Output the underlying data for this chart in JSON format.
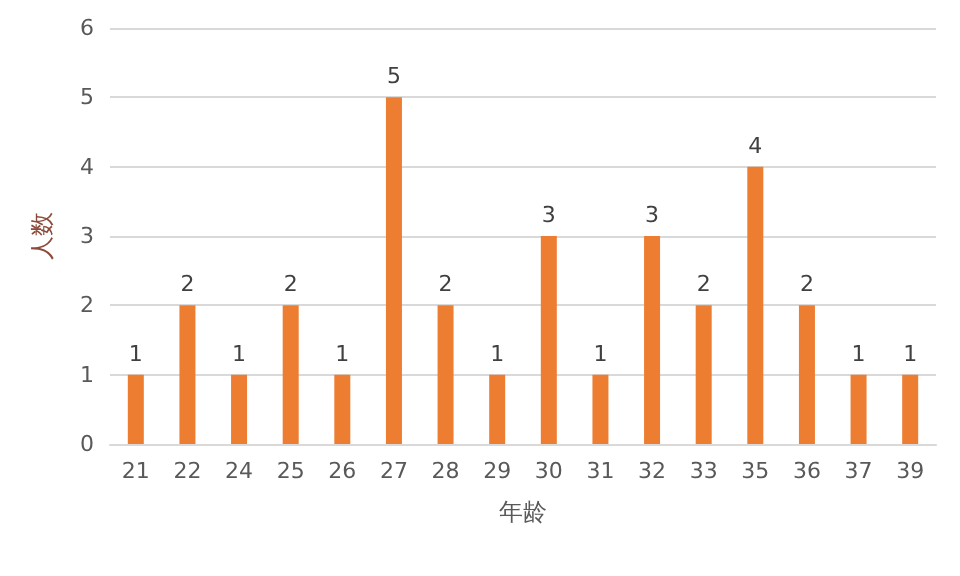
{
  "chart_data": {
    "type": "bar",
    "xlabel": "年龄",
    "ylabel": "人数",
    "categories": [
      "21",
      "22",
      "24",
      "25",
      "26",
      "27",
      "28",
      "29",
      "30",
      "31",
      "32",
      "33",
      "35",
      "36",
      "37",
      "39"
    ],
    "values": [
      1,
      2,
      1,
      2,
      1,
      5,
      2,
      1,
      3,
      1,
      3,
      2,
      4,
      2,
      1,
      1
    ],
    "color": "#ed7d31",
    "ylim": [
      0,
      6
    ],
    "yticks": [
      0,
      1,
      2,
      3,
      4,
      5,
      6
    ],
    "grid": "y",
    "data_labels": true
  }
}
